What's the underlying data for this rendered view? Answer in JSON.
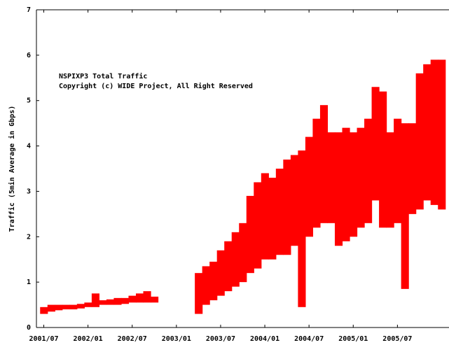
{
  "chart_data": {
    "type": "band",
    "title": "NSPIXP3 Total Traffic",
    "subtitle": "Copyright (c) WIDE Project, All Right Reserved",
    "y_label": "Traffic (5min Average in Gbps)",
    "x": [
      "2001/07",
      "2001/08",
      "2001/09",
      "2001/10",
      "2001/11",
      "2001/12",
      "2002/01",
      "2002/02",
      "2002/03",
      "2002/04",
      "2002/05",
      "2002/06",
      "2002/07",
      "2002/08",
      "2002/09",
      "2002/10",
      "2002/11",
      "2002/12",
      "2003/01",
      "2003/02",
      "2003/03",
      "2003/04",
      "2003/05",
      "2003/06",
      "2003/07",
      "2003/08",
      "2003/09",
      "2003/10",
      "2003/11",
      "2003/12",
      "2004/01",
      "2004/02",
      "2004/03",
      "2004/04",
      "2004/05",
      "2004/06",
      "2004/07",
      "2004/08",
      "2004/09",
      "2004/10",
      "2004/11",
      "2004/12",
      "2005/01",
      "2005/02",
      "2005/03",
      "2005/04",
      "2005/05",
      "2005/06",
      "2005/07",
      "2005/08",
      "2005/09",
      "2005/10",
      "2005/11",
      "2005/12",
      "2006/01"
    ],
    "color": "#ff0000",
    "series": [
      {
        "values": [
          0.45,
          0.5,
          0.5,
          0.5,
          0.5,
          0.52,
          0.55,
          0.75,
          0.6,
          0.62,
          0.65,
          0.65,
          0.7,
          0.75,
          0.8,
          0.68,
          null,
          null,
          null,
          null,
          null,
          1.2,
          1.35,
          1.45,
          1.7,
          1.9,
          2.1,
          2.3,
          2.9,
          3.2,
          3.4,
          3.3,
          3.5,
          3.7,
          3.8,
          3.9,
          4.2,
          4.6,
          4.9,
          4.3,
          4.3,
          4.4,
          4.3,
          4.4,
          4.6,
          5.3,
          5.2,
          4.3,
          4.6,
          4.5,
          4.5,
          5.6,
          5.8,
          5.9,
          5.9
        ]
      },
      {
        "values": [
          0.3,
          0.35,
          0.38,
          0.4,
          0.4,
          0.42,
          0.45,
          0.45,
          0.5,
          0.5,
          0.5,
          0.52,
          0.55,
          0.55,
          0.55,
          0.55,
          null,
          null,
          null,
          null,
          null,
          0.3,
          0.5,
          0.6,
          0.7,
          0.8,
          0.9,
          1.0,
          1.2,
          1.3,
          1.5,
          1.5,
          1.6,
          1.6,
          1.8,
          0.45,
          2.0,
          2.2,
          2.3,
          2.3,
          1.8,
          1.9,
          2.0,
          2.2,
          2.3,
          2.8,
          2.2,
          2.2,
          2.3,
          0.85,
          2.5,
          2.6,
          2.8,
          2.7,
          2.6
        ]
      }
    ],
    "xlim": [
      "2001/06",
      "2006/02"
    ],
    "xticks": [
      "2001/07",
      "2002/01",
      "2002/07",
      "2003/01",
      "2003/07",
      "2004/01",
      "2004/07",
      "2005/01",
      "2005/07"
    ],
    "ylim": [
      0,
      7
    ],
    "yticks": [
      0,
      1,
      2,
      3,
      4,
      5,
      6,
      7
    ]
  }
}
